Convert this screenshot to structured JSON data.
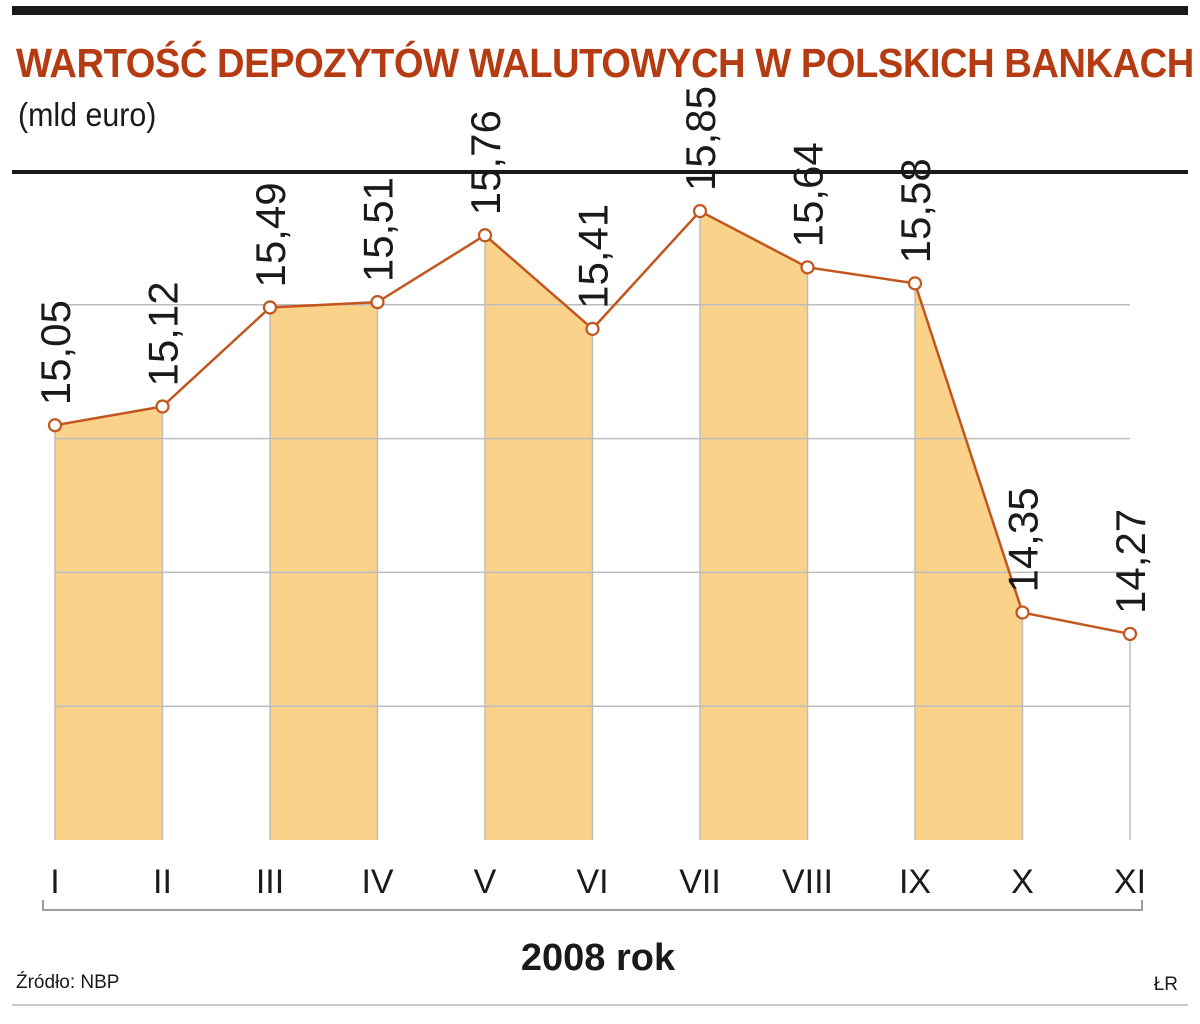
{
  "header": {
    "title": "WARTOŚĆ DEPOZYTÓW WALUTOWYCH W POLSKICH BANKACH",
    "subtitle": "(mld euro)"
  },
  "footer": {
    "source": "Źródło: NBP",
    "credit": "ŁR"
  },
  "colors": {
    "line": "#c2561f",
    "fill": "#fbd28a",
    "grid": "#bdbdbd",
    "title": "#b53c12"
  },
  "chart_data": {
    "type": "area",
    "categories": [
      "I",
      "II",
      "III",
      "IV",
      "V",
      "VI",
      "VII",
      "VIII",
      "IX",
      "X",
      "XI"
    ],
    "values": [
      15.05,
      15.12,
      15.49,
      15.51,
      15.76,
      15.41,
      15.85,
      15.64,
      15.58,
      14.35,
      14.27
    ],
    "value_labels": [
      "15,05",
      "15,12",
      "15,49",
      "15,51",
      "15,76",
      "15,41",
      "15,85",
      "15,64",
      "15,58",
      "14,35",
      "14,27"
    ],
    "xlabel": "2008 rok",
    "ylabel": "",
    "ylim": [
      13.5,
      16.0
    ],
    "grid": true,
    "fill_alternate_segments": true
  }
}
